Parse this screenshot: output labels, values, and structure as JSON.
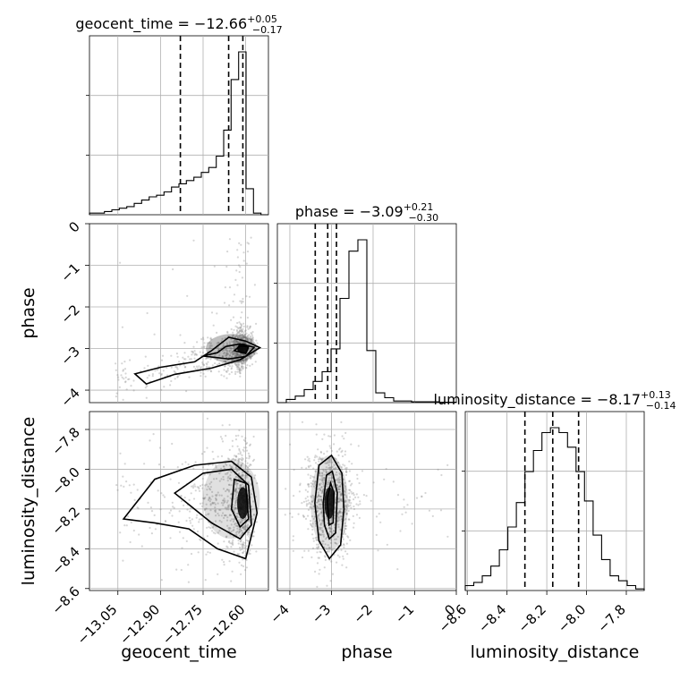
{
  "chart_data": {
    "type": "corner",
    "parameters": [
      "geocent_time",
      "phase",
      "luminosity_distance"
    ],
    "titles": {
      "geocent_time": {
        "label": "geocent_time",
        "median": "−12.66",
        "plus": "+0.05",
        "minus": "−0.17"
      },
      "phase": {
        "label": "phase",
        "median": "−3.09",
        "plus": "+0.21",
        "minus": "−0.30"
      },
      "luminosity_distance": {
        "label": "luminosity_distance",
        "median": "−8.17",
        "plus": "+0.13",
        "minus": "−0.14"
      }
    },
    "axes": {
      "geocent_time": {
        "range": [
          -13.15,
          -12.52
        ],
        "ticks": [
          -13.05,
          -12.9,
          -12.75,
          -12.6
        ],
        "tick_labels": [
          "−13.05",
          "−12.90",
          "−12.75",
          "−12.60"
        ],
        "quantiles": [
          -12.83,
          -12.66,
          -12.61
        ]
      },
      "phase": {
        "range": [
          -4.3,
          0
        ],
        "ticks": [
          -4,
          -3,
          -2,
          -1,
          0
        ],
        "tick_labels": [
          "−4",
          "−3",
          "−2",
          "−1",
          "0"
        ],
        "quantiles": [
          -3.39,
          -3.09,
          -2.88
        ]
      },
      "luminosity_distance": {
        "range": [
          -8.61,
          -7.71
        ],
        "ticks": [
          -8.6,
          -8.4,
          -8.2,
          -8.0,
          -7.8
        ],
        "tick_labels": [
          "−8.6",
          "−8.4",
          "−8.2",
          "−8.0",
          "−7.8"
        ],
        "quantiles": [
          -8.31,
          -8.17,
          -8.04
        ]
      }
    },
    "histograms": {
      "geocent_time": [
        0.01,
        0.01,
        0.02,
        0.03,
        0.04,
        0.05,
        0.07,
        0.09,
        0.11,
        0.12,
        0.14,
        0.17,
        0.19,
        0.21,
        0.23,
        0.26,
        0.29,
        0.36,
        0.52,
        0.83,
        1.0,
        0.16,
        0.01,
        0.0
      ],
      "phase": [
        0.0,
        0.02,
        0.04,
        0.08,
        0.13,
        0.19,
        0.33,
        0.64,
        0.93,
        1.0,
        0.32,
        0.06,
        0.03,
        0.01,
        0.01,
        0.005,
        0.005,
        0.005,
        0.003,
        0.002
      ],
      "luminosity_distance": [
        0.03,
        0.05,
        0.09,
        0.15,
        0.25,
        0.39,
        0.54,
        0.73,
        0.86,
        0.97,
        1.0,
        0.97,
        0.88,
        0.73,
        0.55,
        0.34,
        0.19,
        0.09,
        0.06,
        0.03,
        0.01
      ]
    },
    "grid": true
  }
}
